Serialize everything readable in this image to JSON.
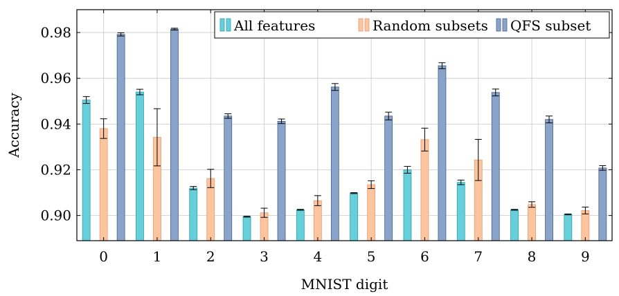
{
  "chart_data": {
    "type": "bar",
    "xlabel": "MNIST digit",
    "ylabel": "Accuracy",
    "categories": [
      "0",
      "1",
      "2",
      "3",
      "4",
      "5",
      "6",
      "7",
      "8",
      "9"
    ],
    "ylim": [
      0.889,
      0.99
    ],
    "yticks": [
      0.9,
      0.92,
      0.94,
      0.96,
      0.98
    ],
    "ytick_labels": [
      "0.90",
      "0.92",
      "0.94",
      "0.96",
      "0.98"
    ],
    "grid": true,
    "legend_position": "top-right",
    "series": [
      {
        "name": "All features",
        "color": "#66cfd9",
        "edge": "#2aa0b0",
        "values": [
          0.9505,
          0.954,
          0.912,
          0.8995,
          0.9025,
          0.9098,
          0.92,
          0.9145,
          0.9025,
          0.9005
        ],
        "errors": [
          0.0015,
          0.0012,
          0.0007,
          0.0002,
          0.0002,
          0.0002,
          0.0015,
          0.001,
          0.0002,
          0.0002
        ]
      },
      {
        "name": "Random subsets",
        "color": "#fbc5a0",
        "edge": "#e89a6c",
        "values": [
          0.938,
          0.9342,
          0.9162,
          0.9012,
          0.9065,
          0.9135,
          0.9332,
          0.9243,
          0.9048,
          0.9022
        ],
        "errors": [
          0.0043,
          0.0125,
          0.004,
          0.002,
          0.0022,
          0.0017,
          0.005,
          0.009,
          0.0012,
          0.0015
        ]
      },
      {
        "name": "QFS subset",
        "color": "#8aa3c8",
        "edge": "#44608c",
        "values": [
          0.9792,
          0.9815,
          0.9435,
          0.9412,
          0.9562,
          0.9435,
          0.9655,
          0.9538,
          0.942,
          0.9208
        ],
        "errors": [
          0.0007,
          0.0004,
          0.001,
          0.001,
          0.0015,
          0.0017,
          0.0013,
          0.0015,
          0.0015,
          0.001
        ]
      }
    ]
  }
}
